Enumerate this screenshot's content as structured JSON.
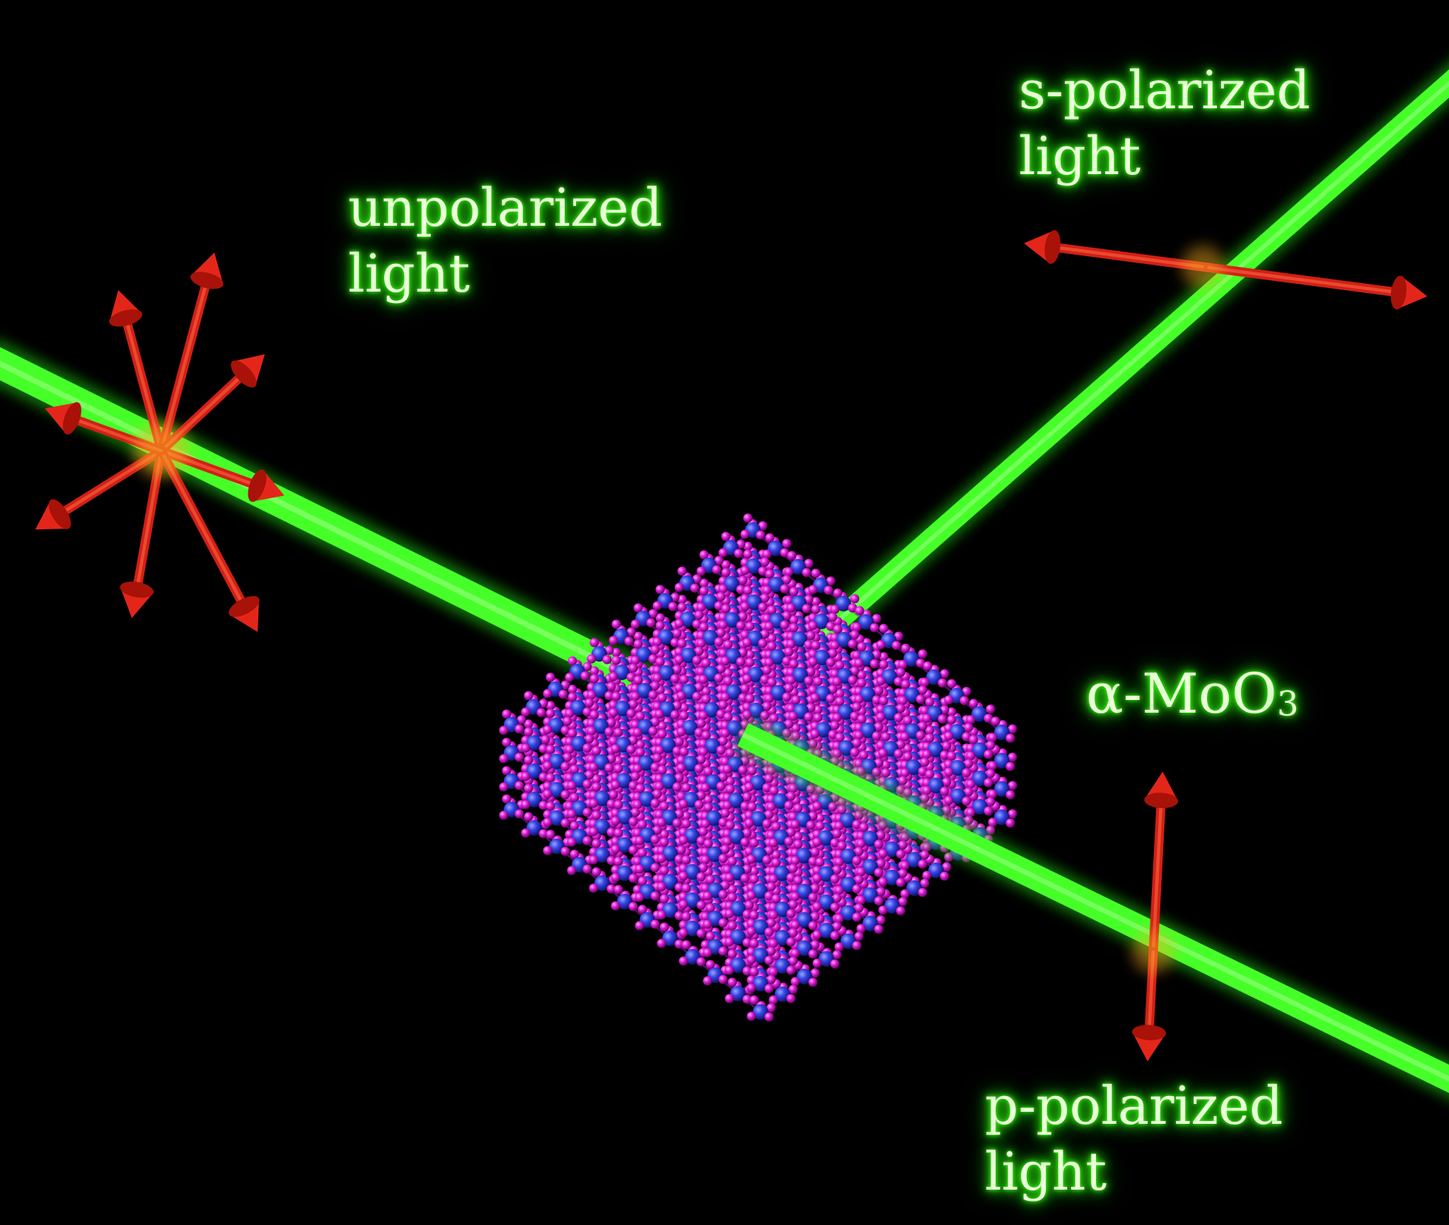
{
  "labels": {
    "unpolarized": {
      "line1": "unpolarized",
      "line2": "light"
    },
    "s_polarized": {
      "line1": "s-polarized",
      "line2": "light"
    },
    "p_polarized": {
      "line1": "p-polarized",
      "line2": "light"
    },
    "material": {
      "prefix": "α-MoO",
      "subscript": "3"
    }
  },
  "colors": {
    "background": "#000000",
    "beam": "#3cff1e",
    "arrow": "#e8281a",
    "mo_atom": "#2f3fe0",
    "o_atom": "#e018d8",
    "label_glow": "#39ff14"
  },
  "icons": {
    "polarization_arrow": "red-3d-arrow",
    "atom_mo": "blue-sphere",
    "atom_o": "magenta-sphere"
  }
}
